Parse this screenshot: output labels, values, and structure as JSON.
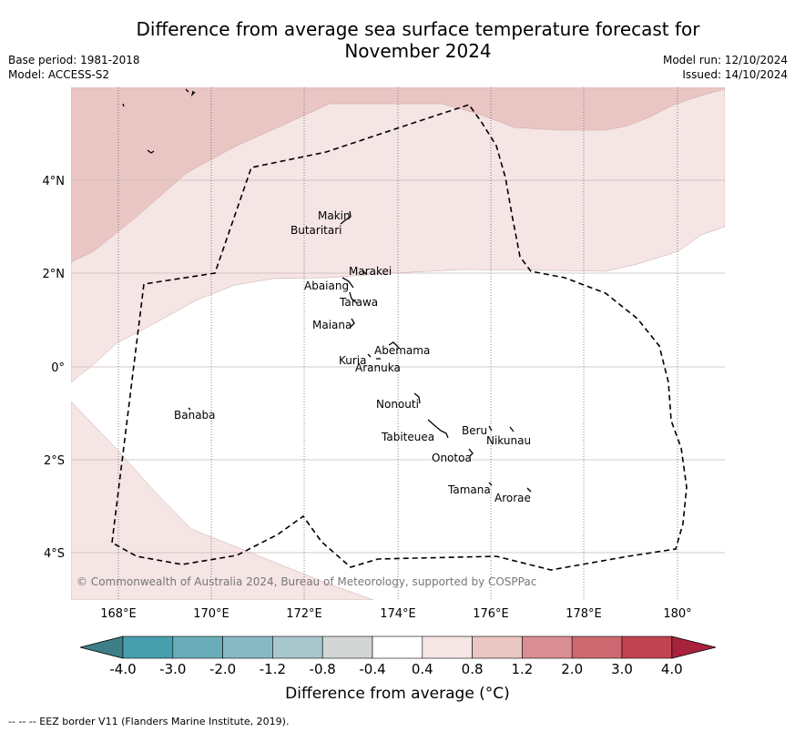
{
  "title_line1": "Difference from average sea surface temperature forecast for",
  "title_line2": "November 2024",
  "meta_left": {
    "base_period": "Base period: 1981-2018",
    "model": "Model: ACCESS-S2"
  },
  "meta_right": {
    "model_run": "Model run: 12/10/2024",
    "issued": "Issued: 14/10/2024"
  },
  "lat_ticks": [
    "4°N",
    "2°N",
    "0°",
    "2°S",
    "4°S"
  ],
  "lon_ticks": [
    "168°E",
    "170°E",
    "172°E",
    "174°E",
    "176°E",
    "178°E",
    "180°"
  ],
  "islands": {
    "makin": "Makin",
    "butaritari": "Butaritari",
    "marakei": "Marakei",
    "abaiang": "Abaiang",
    "tarawa": "Tarawa",
    "maiana": "Maiana",
    "abemama": "Abemama",
    "kuria": "Kuria",
    "aranuka": "Aranuka",
    "banaba": "Banaba",
    "nonouti": "Nonouti",
    "beru": "Beru",
    "tabiteuea": "Tabiteuea",
    "nikunau": "Nikunau",
    "onotoa": "Onotoa",
    "tamana": "Tamana",
    "arorae": "Arorae"
  },
  "copyright": "© Commonwealth of Australia 2024, Bureau of Meteorology, supported by COSPPac",
  "colorbar": {
    "ticks": [
      "-4.0",
      "-3.0",
      "-2.0",
      "-1.2",
      "-0.8",
      "-0.4",
      "0.4",
      "0.8",
      "1.2",
      "2.0",
      "3.0",
      "4.0"
    ],
    "colors": [
      "#479fae",
      "#6aadb9",
      "#88b9c3",
      "#a7c7cc",
      "#d4d6d6",
      "#ffffff",
      "#f5e5e4",
      "#e9c6c3",
      "#d98e93",
      "#cd6870",
      "#c04352"
    ],
    "under_color": "#3d7f87",
    "over_color": "#a8223c",
    "title": "Difference from average (°C)"
  },
  "eez_note": "--  --  -- EEZ border V11 (Flanders Marine Institute, 2019)."
}
